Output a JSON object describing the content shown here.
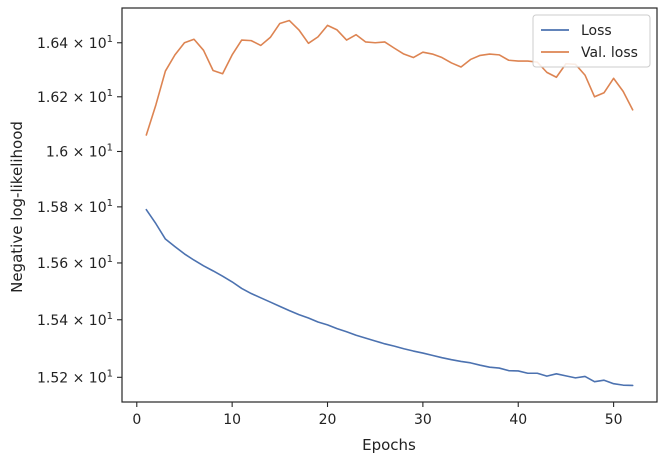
{
  "chart_data": {
    "type": "line",
    "title": "",
    "xlabel": "Epochs",
    "ylabel": "Negative log-likelihood",
    "xlim": [
      -1.55,
      54.55
    ],
    "ylim": [
      15.115,
      16.53
    ],
    "y_scale": "log",
    "grid": false,
    "legend_position": "top-right",
    "x_ticks": [
      {
        "value": 0,
        "label": "0"
      },
      {
        "value": 10,
        "label": "10"
      },
      {
        "value": 20,
        "label": "20"
      },
      {
        "value": 30,
        "label": "30"
      },
      {
        "value": 40,
        "label": "40"
      },
      {
        "value": 50,
        "label": "50"
      }
    ],
    "y_ticks": [
      {
        "value": 15.2,
        "base": "1.52",
        "exp": "1"
      },
      {
        "value": 15.4,
        "base": "1.54",
        "exp": "1"
      },
      {
        "value": 15.6,
        "base": "1.56",
        "exp": "1"
      },
      {
        "value": 15.8,
        "base": "1.58",
        "exp": "1"
      },
      {
        "value": 16.0,
        "base": "1.6",
        "exp": "1"
      },
      {
        "value": 16.2,
        "base": "1.62",
        "exp": "1"
      },
      {
        "value": 16.4,
        "base": "1.64",
        "exp": "1"
      }
    ],
    "x": [
      1,
      2,
      3,
      4,
      5,
      6,
      7,
      8,
      9,
      10,
      11,
      12,
      13,
      14,
      15,
      16,
      17,
      18,
      19,
      20,
      21,
      22,
      23,
      24,
      25,
      26,
      27,
      28,
      29,
      30,
      31,
      32,
      33,
      34,
      35,
      36,
      37,
      38,
      39,
      40,
      41,
      42,
      43,
      44,
      45,
      46,
      47,
      48,
      49,
      50,
      51,
      52
    ],
    "series": [
      {
        "name": "Loss",
        "color": "#4c72b0",
        "values": [
          15.79,
          15.74,
          15.685,
          15.658,
          15.632,
          15.61,
          15.59,
          15.572,
          15.553,
          15.533,
          15.51,
          15.492,
          15.477,
          15.462,
          15.447,
          15.432,
          15.418,
          15.406,
          15.392,
          15.382,
          15.369,
          15.358,
          15.346,
          15.336,
          15.326,
          15.316,
          15.308,
          15.299,
          15.291,
          15.284,
          15.276,
          15.268,
          15.261,
          15.255,
          15.25,
          15.242,
          15.235,
          15.232,
          15.223,
          15.222,
          15.214,
          15.214,
          15.204,
          15.212,
          15.205,
          15.198,
          15.203,
          15.185,
          15.19,
          15.178,
          15.173,
          15.172
        ]
      },
      {
        "name": "Val. loss",
        "color": "#dd8452",
        "values": [
          16.06,
          16.17,
          16.295,
          16.355,
          16.4,
          16.413,
          16.372,
          16.297,
          16.285,
          16.355,
          16.41,
          16.408,
          16.39,
          16.42,
          16.472,
          16.483,
          16.448,
          16.398,
          16.422,
          16.465,
          16.448,
          16.41,
          16.43,
          16.403,
          16.4,
          16.403,
          16.38,
          16.358,
          16.345,
          16.365,
          16.358,
          16.345,
          16.325,
          16.31,
          16.338,
          16.353,
          16.358,
          16.355,
          16.335,
          16.332,
          16.332,
          16.328,
          16.29,
          16.272,
          16.322,
          16.32,
          16.28,
          16.2,
          16.215,
          16.268,
          16.22,
          16.152
        ]
      }
    ]
  }
}
